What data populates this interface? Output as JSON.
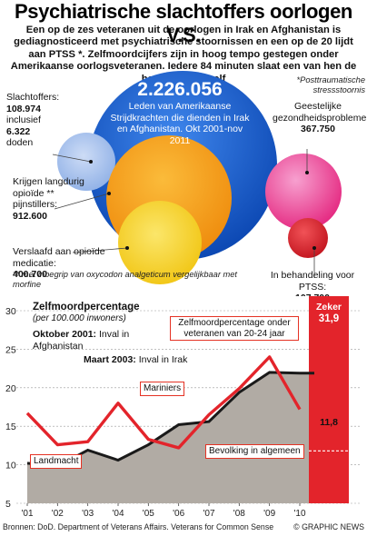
{
  "title": "Psychiatrische slachtoffers oorlogen V.S.",
  "intro": "Een op de zes veteranen uit de oorlogen in Irak en Afghanistan is gediagnosticeerd met psychiatrische stoornissen en een op de 20 lijdt aan PTSS *. Zelfmoordcijfers zijn in hoog tempo gestegen onder Amerikaanse oorlogsveteranen. Iedere 84 minuten slaat een van hen de hand aan zichzelf",
  "bubbles": {
    "total": {
      "value": "2.226.056",
      "caption": "Leden van Amerikaanse Strijdkrachten die dienden in Irak en Afghanistan. Okt 2001-nov 2011",
      "color": "#1b63d6"
    },
    "casualties": {
      "label_1": "Slachtoffers:",
      "value_1": "108.974",
      "label_2": "inclusief",
      "value_2": "6.322",
      "label_3": "doden",
      "color": "#a8c4ee"
    },
    "opioid": {
      "label": "Krijgen langdurig opioïde ** pijnstillers:",
      "value": "912.600",
      "color": "#f7a21b"
    },
    "addicted": {
      "label": "Verslaafd aan opioïde medicatie:",
      "value": "400.700",
      "color": "#f5d226"
    },
    "mental": {
      "label": "Geestelijke gezondheidsproblemen:",
      "value": "367.750",
      "color": "#ee3a9a"
    },
    "ptss": {
      "label": "In behandeling voor PTSS:",
      "value": "107.700",
      "color": "#d91e2a"
    }
  },
  "footnote_ptss": "*Posttraumatische stressstoornis",
  "footnote_opioid": "** met inbegrip van oxycodon analgeticum vergelijkbaar met morfine",
  "colors": {
    "grey_area": "#b1aba4",
    "red_line": "#e3242b",
    "black_line": "#1a1a1a",
    "red_bar": "#e3242b",
    "title_color": "#000000"
  },
  "chart_data": {
    "type": "line",
    "title": "Zelfmoordpercentage",
    "subtitle": "(per 100.000 inwoners)",
    "categories": [
      "'01",
      "'02",
      "'03",
      "'04",
      "'05",
      "'06",
      "'07",
      "'08",
      "'09",
      "'10"
    ],
    "y_ticks": [
      5,
      10,
      15,
      20,
      25,
      30
    ],
    "ylim": [
      5,
      30
    ],
    "grid": true,
    "series": [
      {
        "name": "Landmacht",
        "style": "grey-area",
        "values": [
          10.2,
          9.8,
          11.9,
          10.6,
          12.6,
          15.2,
          15.6,
          19.4,
          22.0,
          21.9
        ]
      },
      {
        "name": "Mariniers",
        "style": "black-line",
        "values": [
          16.7,
          12.6,
          13.0,
          18.0,
          13.3,
          12.2,
          16.5,
          19.9,
          24.0,
          17.2
        ]
      },
      {
        "name": "Zelfmoordpercentage onder veteranen van 20-24 jaar",
        "style": "red-line",
        "values": [
          16.7,
          12.6,
          13.0,
          18.0,
          13.3,
          12.2,
          16.5,
          19.9,
          24.0,
          17.2
        ]
      }
    ],
    "annotations": [
      {
        "bold": "Oktober 2001:",
        "text": " Inval in Afghanistan"
      },
      {
        "bold": "Maart 2003:",
        "text": " Inval in Irak"
      }
    ],
    "side_bar": {
      "label": "Zeker",
      "value": "31,9",
      "value_number": 31.9
    },
    "general_population": {
      "label": "Bevolking in algemeen",
      "value": "11,8",
      "value_number": 11.8
    }
  },
  "footer": {
    "source": "Bronnen: DoD. Department of Veterans Affairs. Veterans for Common Sense",
    "credit": "© GRAPHIC NEWS"
  }
}
